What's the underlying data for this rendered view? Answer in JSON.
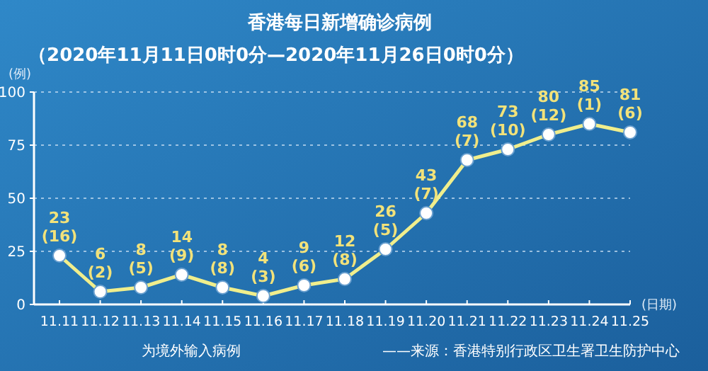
{
  "chart_data": {
    "type": "line",
    "title": "香港每日新增确诊病例",
    "subtitle": "（2020年11月11日0时0分—2020年11月26日0时0分）",
    "ylabel": "(例)",
    "xlabel": "(日期)",
    "categories": [
      "11.11",
      "11.12",
      "11.13",
      "11.14",
      "11.15",
      "11.16",
      "11.17",
      "11.18",
      "11.19",
      "11.20",
      "11.21",
      "11.22",
      "11.23",
      "11.24",
      "11.25"
    ],
    "series": [
      {
        "color": "#f0ee8c",
        "values": [
          23,
          6,
          8,
          14,
          8,
          4,
          9,
          12,
          26,
          43,
          68,
          73,
          80,
          85,
          81
        ],
        "value_labels": [
          "23 (16)",
          "6 (2)",
          "8 (5)",
          "14 (9)",
          "8 (8)",
          "4 (3)",
          "9 (6)",
          "12 (8)",
          "26 (5)",
          "43 (7)",
          "68 (7)",
          "73 (10)",
          "80 (12)",
          "85 (1)",
          "81 (6)"
        ]
      }
    ],
    "ylim": [
      0,
      100
    ],
    "yticks": [
      0,
      25,
      50,
      75,
      100
    ],
    "grid": "y",
    "marker": "circle",
    "line_style": "solid",
    "annotations": [
      "为境外输入病例",
      "——来源：香港特别行政区卫生署卫生防护中心"
    ]
  }
}
